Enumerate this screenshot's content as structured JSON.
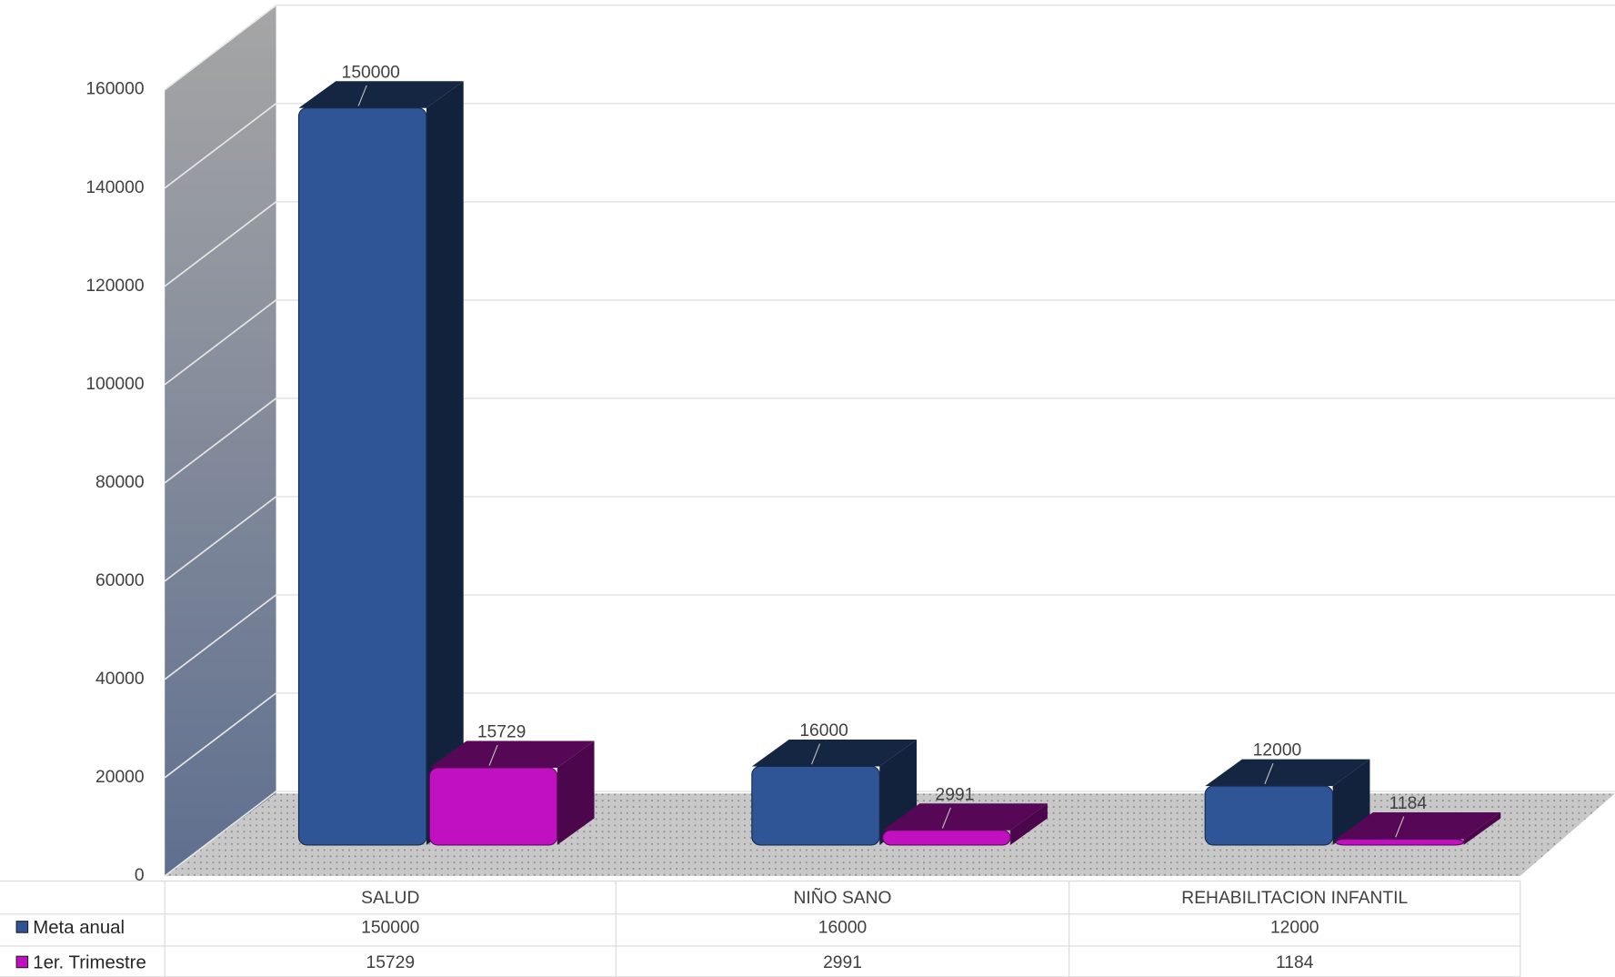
{
  "chart_data": {
    "type": "bar3d",
    "categories": [
      "SALUD",
      "NIÑO SANO",
      "REHABILITACION INFANTIL"
    ],
    "series": [
      {
        "name": "Meta anual",
        "color": "#2f5597",
        "values": [
          150000,
          16000,
          12000
        ]
      },
      {
        "name": "1er. Trimestre",
        "color": "#c010c0",
        "values": [
          15729,
          2991,
          1184
        ]
      }
    ],
    "ylim": [
      0,
      160000
    ],
    "yticks": [
      0,
      20000,
      40000,
      60000,
      80000,
      100000,
      120000,
      140000,
      160000
    ],
    "grid": true,
    "data_table": true
  }
}
